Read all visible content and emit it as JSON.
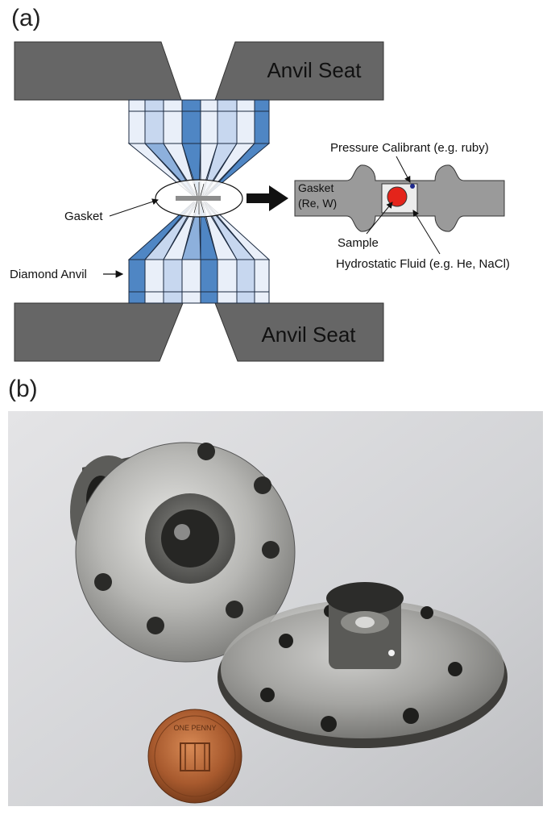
{
  "panels": {
    "a": {
      "label": "(a)"
    },
    "b": {
      "label": "(b)"
    }
  },
  "diagram": {
    "anvil_seat_top": "Anvil Seat",
    "anvil_seat_bottom": "Anvil Seat",
    "gasket_left": "Gasket",
    "diamond_anvil": "Diamond Anvil",
    "gasket_right_line1": "Gasket",
    "gasket_right_line2": "(Re, W)",
    "pressure_calibrant": "Pressure Calibrant (e.g. ruby)",
    "sample": "Sample",
    "hydrostatic_fluid": "Hydrostatic Fluid (e.g. He, NaCl)"
  },
  "colors": {
    "seat_fill": "#666666",
    "anvil_dark": "#4f86c4",
    "anvil_mid": "#8db0dc",
    "anvil_light": "#c7d7ef",
    "anvil_pale": "#e9eff9",
    "gasket_fill": "#9a9a9a",
    "sample_red": "#e4241b",
    "ruby_blue": "#1f2a8c"
  },
  "photo": {
    "coin_text": "ONE PENNY"
  }
}
